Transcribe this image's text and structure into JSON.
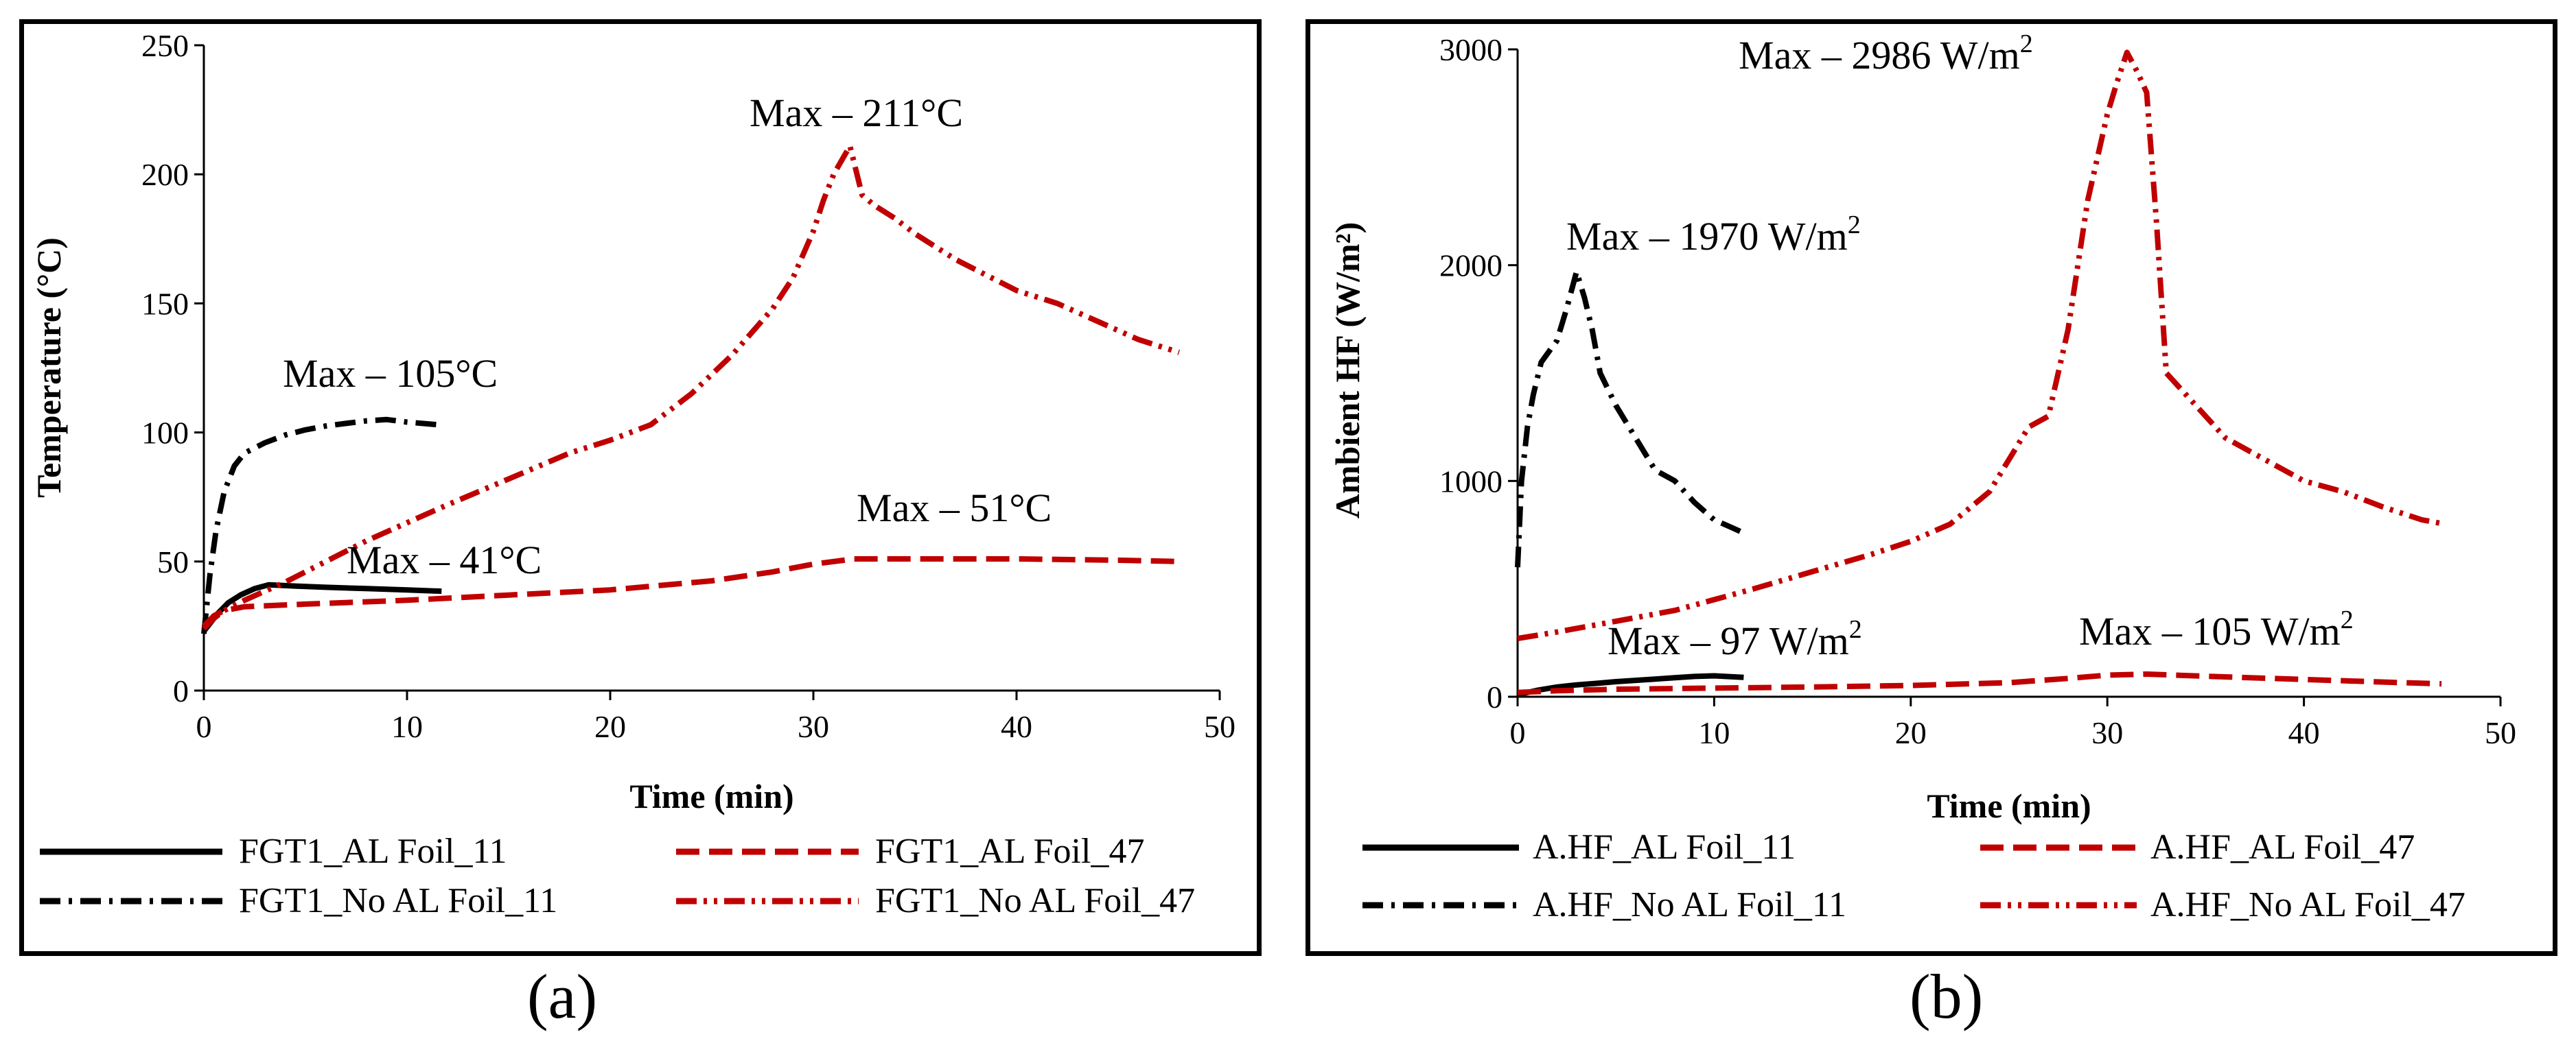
{
  "chart_data": [
    {
      "type": "line",
      "panel_label": "(a)",
      "xlabel": "Time (min)",
      "ylabel": "Temperature (°C)",
      "xlim": [
        0,
        50
      ],
      "ylim": [
        0,
        250
      ],
      "xticks": [
        0,
        10,
        20,
        30,
        40,
        50
      ],
      "yticks": [
        0,
        50,
        100,
        150,
        200,
        250
      ],
      "legend_position": "bottom",
      "series": [
        {
          "name": "FGT1_AL Foil_11",
          "color": "#000000",
          "style": "solid",
          "x": [
            0,
            0.3,
            0.7,
            1.2,
            1.8,
            2.5,
            3.2,
            4.5,
            6,
            8,
            10,
            11.7
          ],
          "y": [
            23,
            26,
            30,
            34,
            37,
            39.5,
            41,
            40.5,
            40,
            39.5,
            39,
            38.5
          ]
        },
        {
          "name": "FGT1_No AL Foil_11",
          "color": "#000000",
          "style": "dashdot",
          "x": [
            0,
            0.3,
            0.6,
            1,
            1.5,
            2,
            3,
            4,
            5,
            6,
            7,
            8,
            9,
            10,
            11.5
          ],
          "y": [
            22,
            45,
            62,
            77,
            87,
            92,
            96,
            99,
            101,
            102.5,
            103.5,
            104.5,
            105,
            104,
            103
          ]
        },
        {
          "name": "FGT1_AL Foil_47",
          "color": "#c00000",
          "style": "dashed",
          "x": [
            0,
            0.5,
            1,
            2,
            5,
            10,
            15,
            20,
            25,
            28,
            30,
            32,
            35,
            40,
            45,
            48
          ],
          "y": [
            25,
            29,
            31,
            32.5,
            33.5,
            35,
            37,
            39,
            42.5,
            46,
            49,
            51,
            51,
            51,
            50.5,
            50
          ]
        },
        {
          "name": "FGT1_No AL Foil_47",
          "color": "#c00000",
          "style": "dashdotdot",
          "x": [
            0,
            0.5,
            1,
            2,
            4,
            6,
            8,
            10,
            12,
            15,
            18,
            20,
            22,
            24,
            26,
            28,
            29,
            30,
            30.5,
            31,
            31.8,
            32.4,
            33,
            34,
            35,
            37,
            40,
            42,
            44,
            46,
            48
          ],
          "y": [
            24,
            28,
            31,
            35,
            42,
            50,
            58,
            65,
            72,
            82,
            92,
            97,
            103,
            115,
            130,
            148,
            160,
            178,
            190,
            200,
            211,
            192,
            188,
            183,
            177,
            167,
            155,
            150,
            143,
            136,
            131
          ]
        }
      ],
      "annotations": [
        "Max – 105°C",
        "Max – 41°C",
        "Max – 211°C",
        "Max – 51°C"
      ]
    },
    {
      "type": "line",
      "panel_label": "(b)",
      "xlabel": "Time (min)",
      "ylabel": "Ambient HF (W/m²)",
      "xlim": [
        0,
        50
      ],
      "ylim": [
        0,
        3000
      ],
      "xticks": [
        0,
        10,
        20,
        30,
        40,
        50
      ],
      "yticks": [
        0,
        1000,
        2000,
        3000
      ],
      "legend_position": "bottom",
      "series": [
        {
          "name": "A.HF_AL Foil_11",
          "color": "#000000",
          "style": "solid",
          "x": [
            0,
            1,
            2,
            3,
            4,
            5,
            6,
            7,
            8,
            9,
            10,
            11.5
          ],
          "y": [
            10,
            30,
            45,
            55,
            62,
            70,
            76,
            82,
            88,
            94,
            97,
            90
          ]
        },
        {
          "name": "A.HF_No AL Foil_11",
          "color": "#000000",
          "style": "dashdot",
          "x": [
            0,
            0.2,
            0.5,
            0.8,
            1.2,
            1.6,
            2,
            2.5,
            3,
            3.4,
            3.8,
            4.2,
            5,
            6,
            7,
            8,
            9,
            10,
            11,
            11.7
          ],
          "y": [
            600,
            1000,
            1250,
            1400,
            1550,
            1600,
            1650,
            1800,
            1970,
            1850,
            1700,
            1500,
            1350,
            1200,
            1050,
            1000,
            900,
            820,
            780,
            750
          ]
        },
        {
          "name": "A.HF_AL Foil_47",
          "color": "#c00000",
          "style": "dashed",
          "x": [
            0,
            2,
            5,
            10,
            15,
            20,
            25,
            28,
            30,
            32,
            35,
            40,
            45,
            47
          ],
          "y": [
            20,
            28,
            35,
            40,
            45,
            52,
            65,
            85,
            100,
            105,
            95,
            80,
            65,
            60
          ]
        },
        {
          "name": "A.HF_No AL Foil_47",
          "color": "#c00000",
          "style": "dashdotdot",
          "x": [
            0,
            2,
            5,
            8,
            10,
            12,
            15,
            18,
            20,
            22,
            24,
            25,
            26,
            27,
            28,
            29,
            30,
            30.5,
            31,
            31.5,
            32,
            32.5,
            33,
            34,
            35,
            36,
            38,
            40,
            42,
            44,
            46,
            47.2
          ],
          "y": [
            270,
            300,
            350,
            400,
            450,
            500,
            580,
            660,
            720,
            800,
            950,
            1100,
            1250,
            1300,
            1700,
            2300,
            2700,
            2850,
            2986,
            2900,
            2800,
            2200,
            1500,
            1400,
            1300,
            1200,
            1100,
            1000,
            950,
            880,
            820,
            800
          ]
        }
      ],
      "annotations": [
        "Max – 2986 W/m",
        "Max – 1970 W/m",
        "Max – 97 W/m",
        "Max – 105 W/m"
      ],
      "annotation_superscript": "2"
    }
  ]
}
